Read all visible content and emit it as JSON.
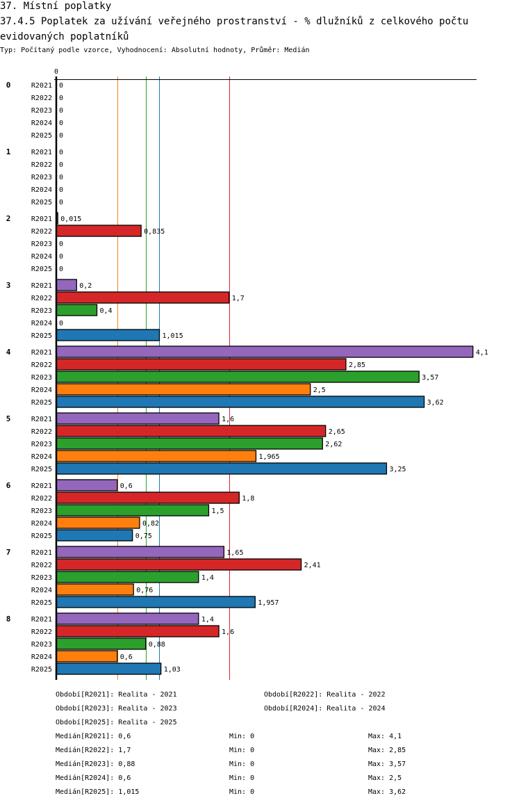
{
  "header": {
    "section_title": "37. Místní poplatky",
    "chart_title": "37.4.5 Poplatek za užívání veřejného prostranství - % dlužníků z celkového počtu evidovaných poplatníků",
    "subtitle": "Typ: Počítaný podle vzorce, Vyhodnocení: Absolutní hodnoty, Průměr: Medián"
  },
  "chart_data": {
    "type": "bar",
    "orientation": "horizontal",
    "title": "37.4.5 Poplatek za užívání veřejného prostranství - % dlužníků z celkového počtu evidovaných poplatníků",
    "xlabel": "",
    "ylabel": "",
    "x_tick_labels": [
      "0"
    ],
    "xlim": [
      0,
      4.1
    ],
    "grid": false,
    "categories": [
      "0",
      "1",
      "2",
      "3",
      "4",
      "5",
      "6",
      "7",
      "8"
    ],
    "series": [
      {
        "name": "R2021",
        "color": "#9467bd",
        "values": [
          0,
          0,
          0.015,
          0.2,
          4.1,
          1.6,
          0.6,
          1.65,
          1.4
        ],
        "labels": [
          "0",
          "0",
          "0,015",
          "0,2",
          "4,1",
          "1,6",
          "0,6",
          "1,65",
          "1,4"
        ]
      },
      {
        "name": "R2022",
        "color": "#d62728",
        "values": [
          0,
          0,
          0.835,
          1.7,
          2.85,
          2.65,
          1.8,
          2.41,
          1.6
        ],
        "labels": [
          "0",
          "0",
          "0,835",
          "1,7",
          "2,85",
          "2,65",
          "1,8",
          "2,41",
          "1,6"
        ]
      },
      {
        "name": "R2023",
        "color": "#2ca02c",
        "values": [
          0,
          0,
          0,
          0.4,
          3.57,
          2.62,
          1.5,
          1.4,
          0.88
        ],
        "labels": [
          "0",
          "0",
          "0",
          "0,4",
          "3,57",
          "2,62",
          "1,5",
          "1,4",
          "0,88"
        ]
      },
      {
        "name": "R2024",
        "color": "#ff7f0e",
        "values": [
          0,
          0,
          0,
          0,
          2.5,
          1.965,
          0.82,
          0.76,
          0.6
        ],
        "labels": [
          "0",
          "0",
          "0",
          "0",
          "2,5",
          "1,965",
          "0,82",
          "0,76",
          "0,6"
        ]
      },
      {
        "name": "R2025",
        "color": "#1f77b4",
        "values": [
          0,
          0,
          0,
          1.015,
          3.62,
          3.25,
          0.75,
          1.957,
          1.03
        ],
        "labels": [
          "0",
          "0",
          "0",
          "1,015",
          "3,62",
          "3,25",
          "0,75",
          "1,957",
          "1,03"
        ]
      }
    ],
    "medians": [
      {
        "series": "R2021",
        "value": 0.6,
        "color": "#ff7f0e"
      },
      {
        "series": "R2023",
        "value": 0.88,
        "color": "#2ca02c"
      },
      {
        "series": "R2025",
        "value": 1.015,
        "color": "#1f77b4"
      },
      {
        "series": "R2022",
        "value": 1.7,
        "color": "#d62728"
      }
    ],
    "legend": {
      "placement": "bottom",
      "periods": [
        "Období[R2021]: Realita - 2021",
        "Období[R2022]: Realita - 2022",
        "Období[R2023]: Realita - 2023",
        "Období[R2024]: Realita - 2024",
        "Období[R2025]: Realita - 2025"
      ],
      "stats": [
        {
          "median": "Medián[R2021]: 0,6",
          "min": "Min: 0",
          "max": "Max: 4,1"
        },
        {
          "median": "Medián[R2022]: 1,7",
          "min": "Min: 0",
          "max": "Max: 2,85"
        },
        {
          "median": "Medián[R2023]: 0,88",
          "min": "Min: 0",
          "max": "Max: 3,57"
        },
        {
          "median": "Medián[R2024]: 0,6",
          "min": "Min: 0",
          "max": "Max: 2,5"
        },
        {
          "median": "Medián[R2025]: 1,015",
          "min": "Min: 0",
          "max": "Max: 3,62"
        }
      ]
    }
  }
}
